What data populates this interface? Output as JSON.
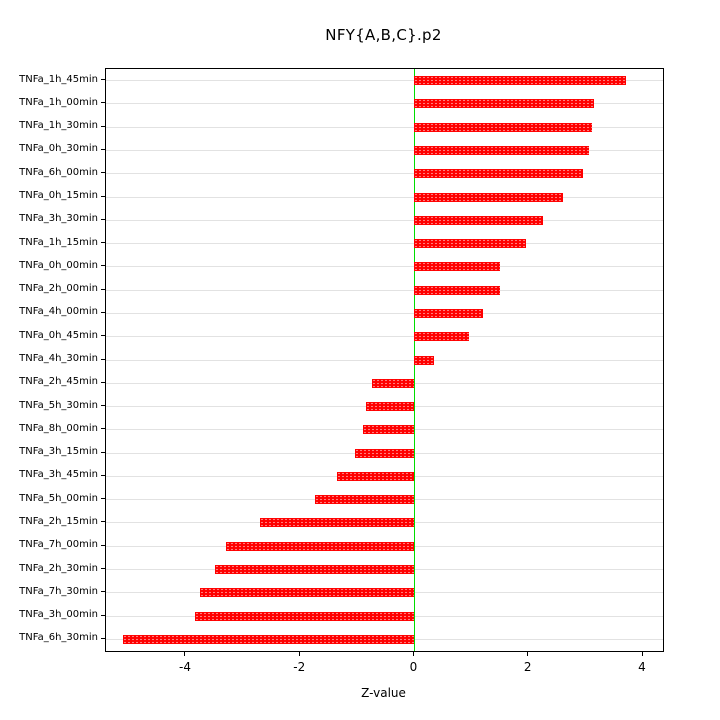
{
  "title": "NFY{A,B,C}.p2",
  "chart_data": {
    "type": "bar",
    "orientation": "horizontal",
    "title": "NFY{A,B,C}.p2",
    "xlabel": "Z-value",
    "ylabel": "",
    "xlim": [
      -5.4,
      4.35
    ],
    "x_ticks": [
      -4,
      -2,
      0,
      2,
      4
    ],
    "grid": true,
    "legend": "none",
    "bar_color": "#ff0000",
    "zero_line_color": "#00dd00",
    "grid_color": "#e2e2e2",
    "categories": [
      "TNFa_1h_45min",
      "TNFa_1h_00min",
      "TNFa_1h_30min",
      "TNFa_0h_30min",
      "TNFa_6h_00min",
      "TNFa_0h_15min",
      "TNFa_3h_30min",
      "TNFa_1h_15min",
      "TNFa_0h_00min",
      "TNFa_2h_00min",
      "TNFa_4h_00min",
      "TNFa_0h_45min",
      "TNFa_4h_30min",
      "TNFa_2h_45min",
      "TNFa_5h_30min",
      "TNFa_8h_00min",
      "TNFa_3h_15min",
      "TNFa_3h_45min",
      "TNFa_5h_00min",
      "TNFa_2h_15min",
      "TNFa_7h_00min",
      "TNFa_2h_30min",
      "TNFa_7h_30min",
      "TNFa_3h_00min",
      "TNFa_6h_30min"
    ],
    "values": [
      3.7,
      3.15,
      3.1,
      3.05,
      2.95,
      2.6,
      2.25,
      1.95,
      1.5,
      1.5,
      1.2,
      0.95,
      0.35,
      -0.75,
      -0.85,
      -0.9,
      -1.05,
      -1.35,
      -1.75,
      -2.7,
      -3.3,
      -3.5,
      -3.75,
      -3.85,
      -5.1
    ]
  }
}
